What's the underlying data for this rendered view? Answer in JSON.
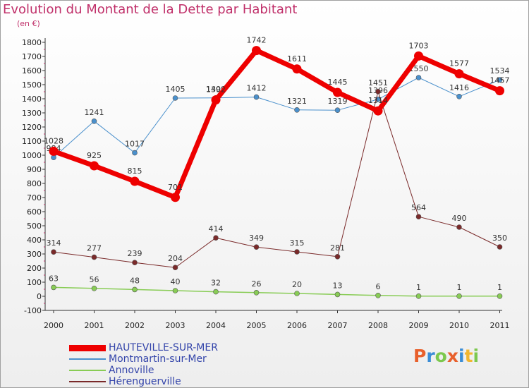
{
  "header": {
    "title": "Evolution du Montant de la Dette par Habitant",
    "unit": "(en €)"
  },
  "logo": {
    "text": "Proxiti",
    "colors": [
      "#e8602c",
      "#3b8dd6",
      "#7cc84e",
      "#e8602c",
      "#3b8dd6",
      "#f2b630",
      "#7cc84e"
    ]
  },
  "chart_data": {
    "type": "line",
    "title": "Evolution du Montant de la Dette par Habitant",
    "subtitle": "(en €)",
    "xlabel": "",
    "ylabel": "",
    "x": [
      "2000",
      "2001",
      "2002",
      "2003",
      "2004",
      "2005",
      "2006",
      "2007",
      "2008",
      "2009",
      "2010",
      "2011"
    ],
    "ylim": [
      -100,
      1800
    ],
    "yticks": [
      -100,
      0,
      100,
      200,
      300,
      400,
      500,
      600,
      700,
      800,
      900,
      1000,
      1100,
      1200,
      1300,
      1400,
      1500,
      1600,
      1700,
      1800
    ],
    "grid": false,
    "legend": "bottom-left",
    "series": [
      {
        "name": "Montmartin-sur-Mer",
        "color": "#4a90cc",
        "width": 1,
        "radius": 3.5,
        "values": [
          984,
          1241,
          1017,
          1405,
          1406,
          1412,
          1321,
          1319,
          1396,
          1550,
          1416,
          1534
        ]
      },
      {
        "name": "Annoville",
        "color": "#88cc55",
        "width": 1.5,
        "radius": 3.5,
        "values": [
          63,
          56,
          48,
          40,
          32,
          26,
          20,
          13,
          6,
          1,
          1,
          1
        ]
      },
      {
        "name": "Hérenguerville",
        "color": "#7a2a2a",
        "width": 1,
        "radius": 3.5,
        "values": [
          314,
          277,
          239,
          204,
          414,
          349,
          315,
          281,
          1451,
          564,
          490,
          350
        ]
      },
      {
        "name": "HAUTEVILLE-SUR-MER",
        "color": "#ee0000",
        "width": 7,
        "radius": 6.5,
        "values": [
          1028,
          925,
          815,
          701,
          1392,
          1742,
          1611,
          1445,
          1314,
          1703,
          1577,
          1457
        ]
      }
    ],
    "legend_order": [
      "HAUTEVILLE-SUR-MER",
      "Montmartin-sur-Mer",
      "Annoville",
      "Hérenguerville"
    ]
  }
}
